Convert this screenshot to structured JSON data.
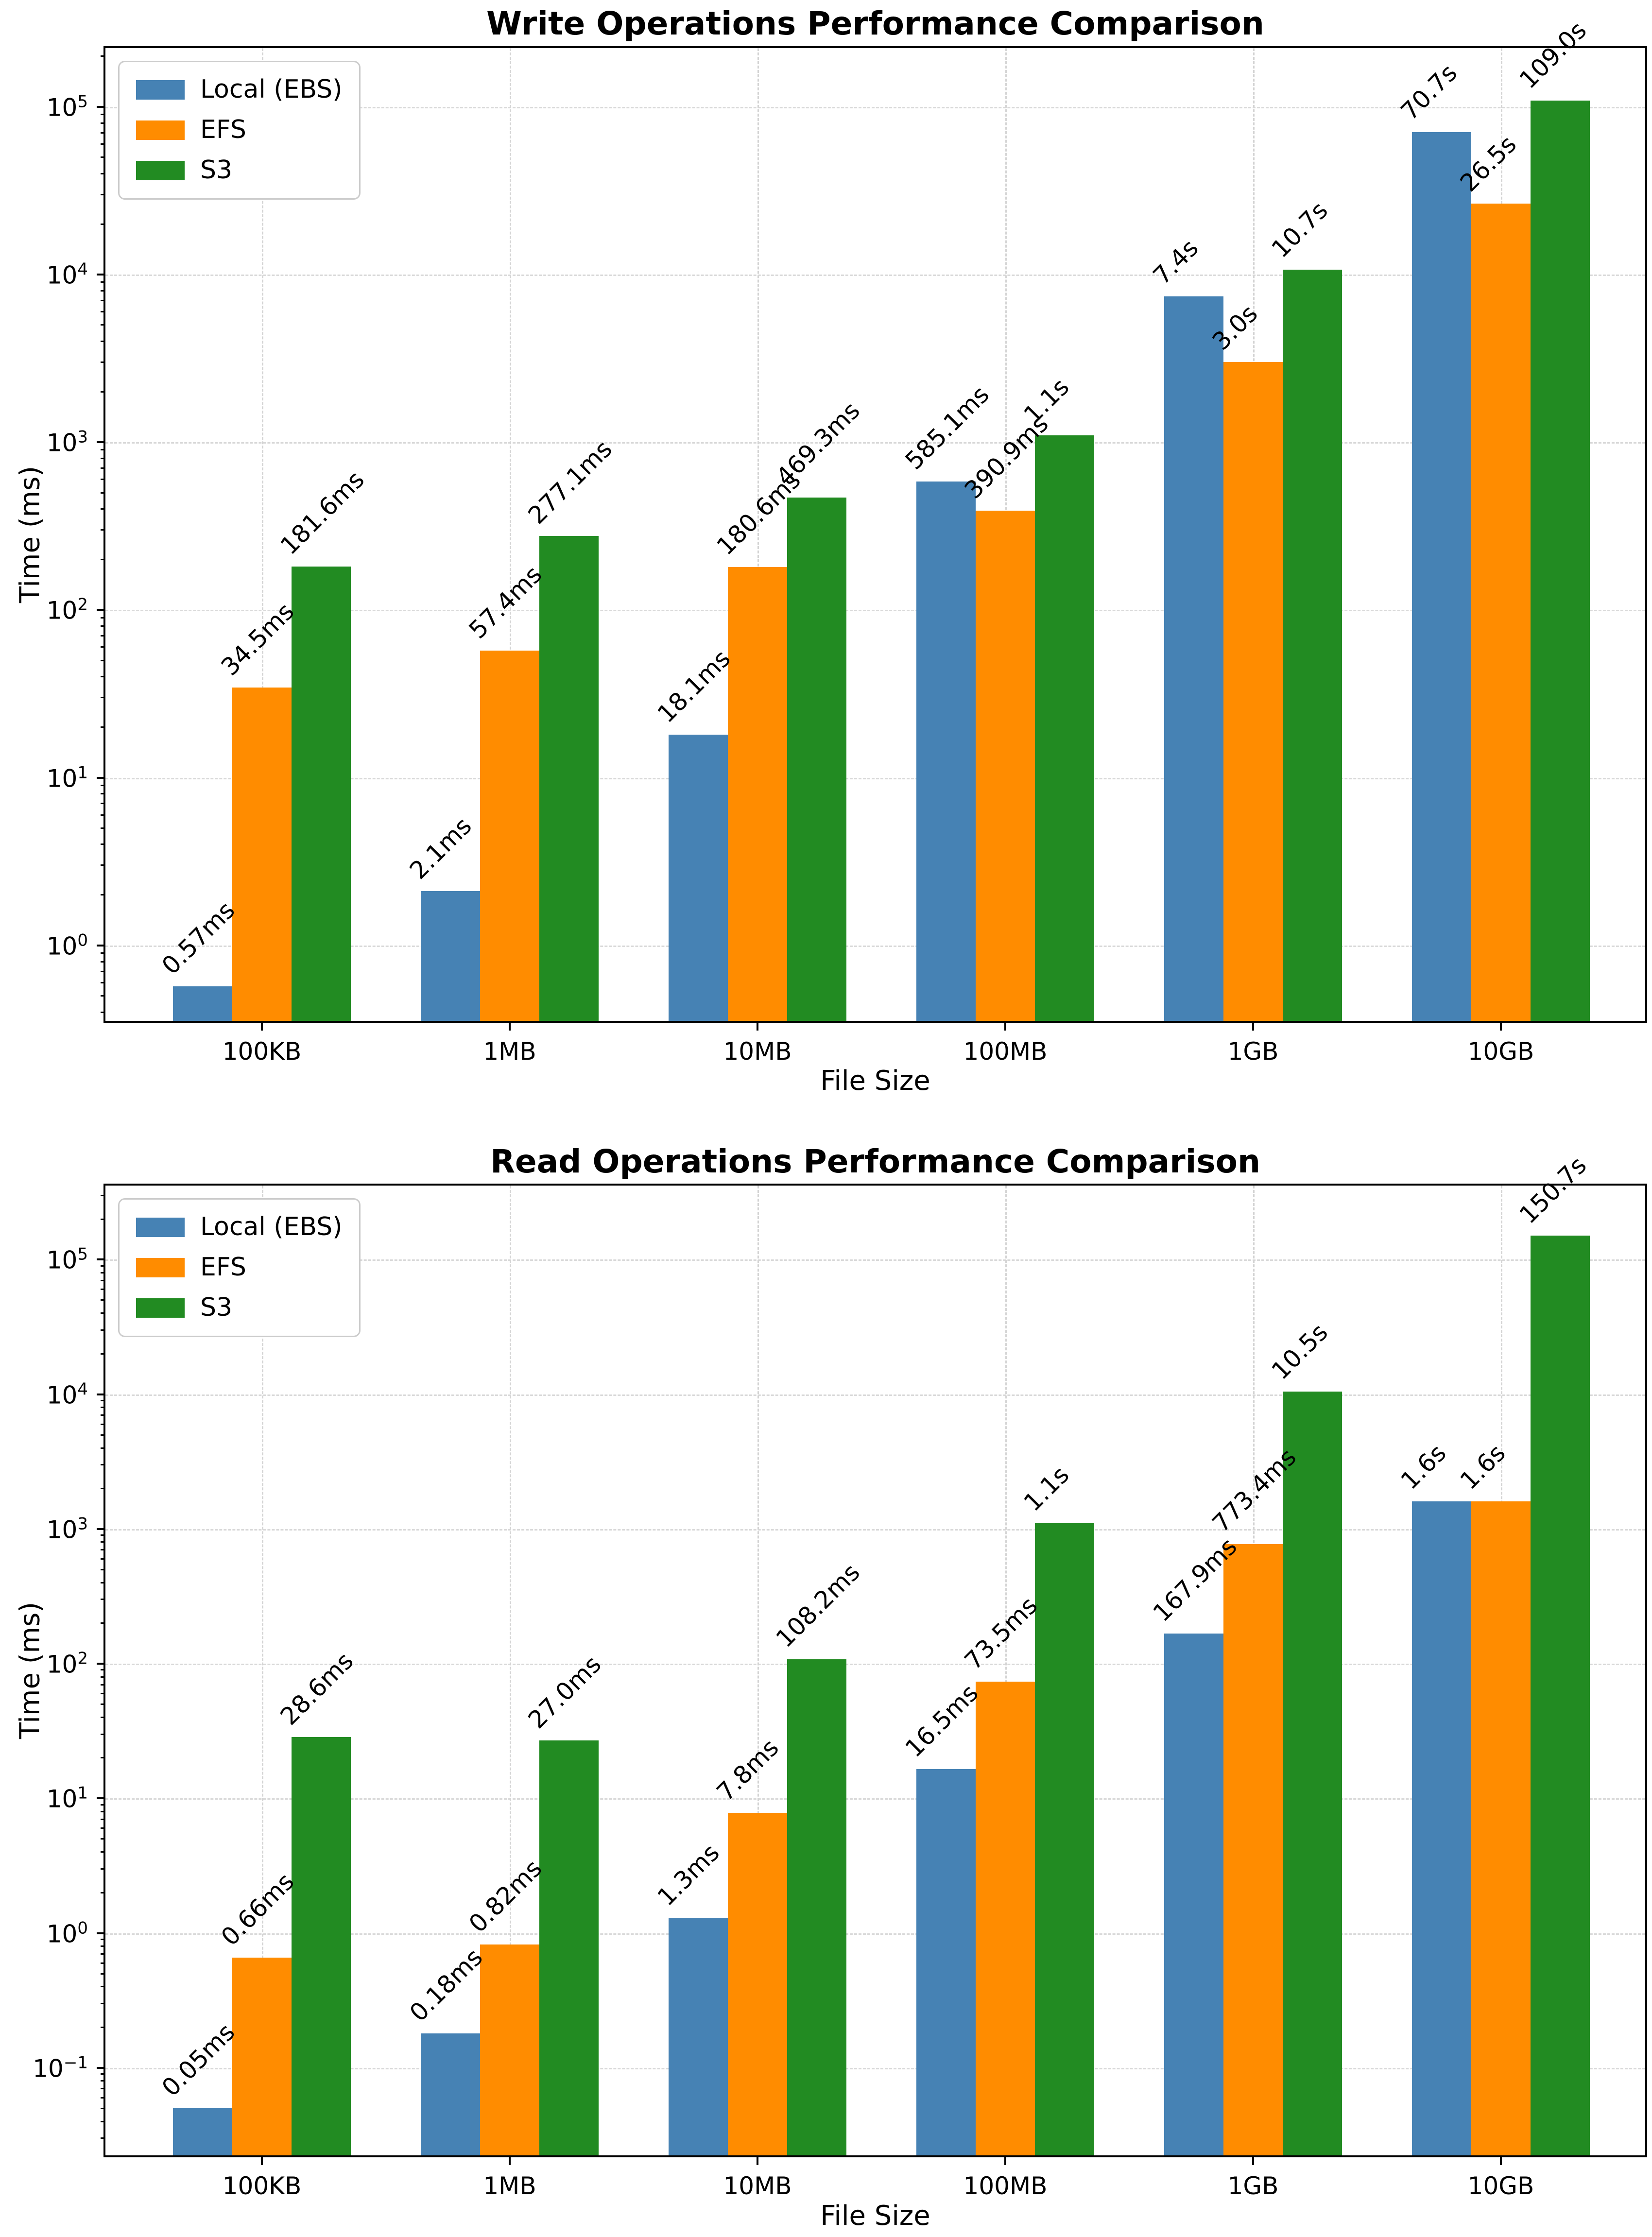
{
  "chart_data": [
    {
      "type": "bar",
      "title": "Write Operations Performance Comparison",
      "xlabel": "File Size",
      "ylabel": "Time (ms)",
      "yscale": "log",
      "grid": true,
      "legend_position": "upper-left",
      "categories": [
        "100KB",
        "1MB",
        "10MB",
        "100MB",
        "1GB",
        "10GB"
      ],
      "ytick_exponents": [
        "0",
        "1",
        "2",
        "3",
        "4",
        "5"
      ],
      "ylim_log": [
        -0.45,
        5.35
      ],
      "series": [
        {
          "name": "Local (EBS)",
          "color": "#4682B4",
          "values_ms": [
            0.57,
            2.1,
            18.1,
            585.1,
            7400,
            70700
          ],
          "labels": [
            "0.57ms",
            "2.1ms",
            "18.1ms",
            "585.1ms",
            "7.4s",
            "70.7s"
          ]
        },
        {
          "name": "EFS",
          "color": "#FF8C00",
          "values_ms": [
            34.5,
            57.4,
            180.6,
            390.9,
            3000,
            26500
          ],
          "labels": [
            "34.5ms",
            "57.4ms",
            "180.6ms",
            "390.9ms",
            "3.0s",
            "26.5s"
          ]
        },
        {
          "name": "S3",
          "color": "#228B22",
          "values_ms": [
            181.6,
            277.1,
            469.3,
            1100,
            10700,
            109000
          ],
          "labels": [
            "181.6ms",
            "277.1ms",
            "469.3ms",
            "1.1s",
            "10.7s",
            "109.0s"
          ]
        }
      ]
    },
    {
      "type": "bar",
      "title": "Read Operations Performance Comparison",
      "xlabel": "File Size",
      "ylabel": "Time (ms)",
      "yscale": "log",
      "grid": true,
      "legend_position": "upper-left",
      "categories": [
        "100KB",
        "1MB",
        "10MB",
        "100MB",
        "1GB",
        "10GB"
      ],
      "ytick_exponents": [
        "-1",
        "0",
        "1",
        "2",
        "3",
        "4",
        "5"
      ],
      "ylim_log": [
        -1.65,
        5.55
      ],
      "series": [
        {
          "name": "Local (EBS)",
          "color": "#4682B4",
          "values_ms": [
            0.05,
            0.18,
            1.3,
            16.5,
            167.9,
            1600
          ],
          "labels": [
            "0.05ms",
            "0.18ms",
            "1.3ms",
            "16.5ms",
            "167.9ms",
            "1.6s"
          ]
        },
        {
          "name": "EFS",
          "color": "#FF8C00",
          "values_ms": [
            0.66,
            0.82,
            7.8,
            73.5,
            773.4,
            1600
          ],
          "labels": [
            "0.66ms",
            "0.82ms",
            "7.8ms",
            "73.5ms",
            "773.4ms",
            "1.6s"
          ]
        },
        {
          "name": "S3",
          "color": "#228B22",
          "values_ms": [
            28.6,
            27.0,
            108.2,
            1100,
            10500,
            150700
          ],
          "labels": [
            "28.6ms",
            "27.0ms",
            "108.2ms",
            "1.1s",
            "10.5s",
            "150.7s"
          ]
        }
      ]
    }
  ]
}
